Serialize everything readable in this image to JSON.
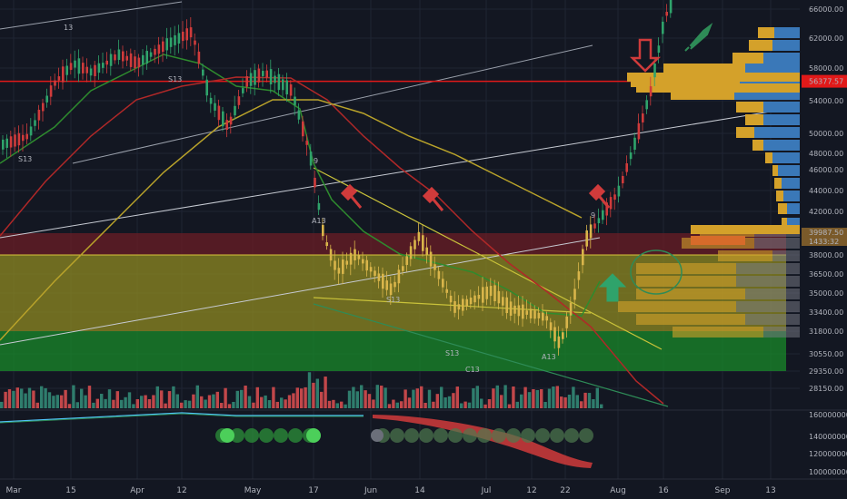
{
  "chart_data": {
    "type": "candlestick",
    "price_axis": {
      "ticks": [
        66000,
        62000,
        58000,
        54000,
        50000,
        48000,
        46000,
        44000,
        42000,
        38000,
        36500,
        35000,
        33400,
        31800,
        30550,
        29350,
        28150
      ],
      "tick_labels": [
        "66000.00",
        "62000.00",
        "58000.00",
        "54000.00",
        "50000.00",
        "48000.00",
        "46000.00",
        "44000.00",
        "42000.00",
        "38000.00",
        "36500.00",
        "35000.00",
        "33400.00",
        "31800.00",
        "30550.00",
        "29350.00",
        "28150.00"
      ],
      "current_price_label": "56377.57",
      "marker_label_1": "39987.50",
      "marker_label_2": "1433:32"
    },
    "indicator_axis": {
      "ticks": [
        160000000,
        140000000,
        120000000,
        100000000
      ],
      "tick_labels": [
        "160000000.00",
        "140000000.00",
        "120000000.00",
        "100000000.00"
      ]
    },
    "time_axis": {
      "labels": [
        "Mar",
        "15",
        "Apr",
        "12",
        "May",
        "17",
        "Jun",
        "14",
        "Jul",
        "12",
        "22",
        "Aug",
        "16",
        "Sep",
        "13"
      ]
    },
    "zones": [
      {
        "name": "resistance",
        "from": 38000,
        "to": 40000,
        "color": "#6b1e26"
      },
      {
        "name": "range",
        "from": 31800,
        "to": 38000,
        "color": "#8f8a22"
      },
      {
        "name": "support",
        "from": 29350,
        "to": 31800,
        "color": "#1a8a2a"
      }
    ],
    "horizontal_line": {
      "value": 56377.57,
      "color": "#e11919"
    },
    "td_labels": [
      "13",
      "S13",
      "S13",
      "A13",
      "9",
      "S13",
      "S13",
      "A13",
      "C13",
      "9"
    ],
    "colors": {
      "up": "#26a69a",
      "down": "#ef5350",
      "candle_up": "#c8a832",
      "candle_down": "#d03b3b",
      "ma_green": "#2e8b2e",
      "ma_red": "#b02828",
      "ma_yellow": "#b8a22a",
      "volume_profile": "#d4a12a",
      "volume_profile_alt": "#3a78b8"
    }
  }
}
